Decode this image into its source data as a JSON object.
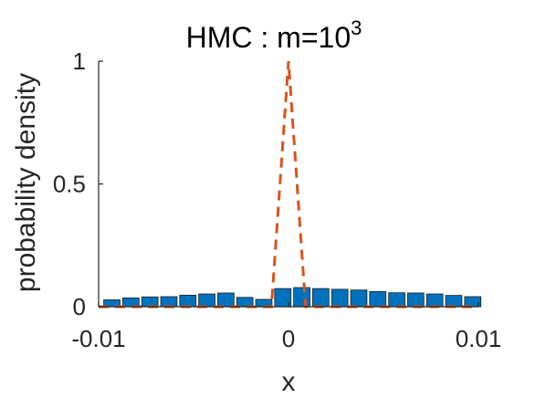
{
  "chart_data": {
    "type": "bar",
    "title_main": "HMC : m=10",
    "title_exponent": "3",
    "xlabel": "x",
    "ylabel": "probability density",
    "xlim": [
      -0.01,
      0.01
    ],
    "ylim": [
      0,
      1
    ],
    "xticks": [
      -0.01,
      0,
      0.01
    ],
    "xtick_labels": [
      "-0.01",
      "0",
      "0.01"
    ],
    "yticks": [
      0,
      0.5,
      1
    ],
    "ytick_labels": [
      "0",
      "0.5",
      "1"
    ],
    "grid": false,
    "series": [
      {
        "type": "bar",
        "color": "#0072BD",
        "bin_width": 0.001,
        "bin_centers": [
          -0.0093,
          -0.0083,
          -0.0073,
          -0.0063,
          -0.0053,
          -0.0043,
          -0.0033,
          -0.0023,
          -0.0013,
          -0.0003,
          0.0007,
          0.0017,
          0.0027,
          0.0037,
          0.0047,
          0.0057,
          0.0067,
          0.0077,
          0.0087,
          0.0097
        ],
        "values": [
          0.028,
          0.036,
          0.04,
          0.041,
          0.047,
          0.052,
          0.056,
          0.038,
          0.03,
          0.074,
          0.078,
          0.074,
          0.071,
          0.068,
          0.062,
          0.057,
          0.056,
          0.052,
          0.046,
          0.041
        ]
      },
      {
        "type": "line",
        "style": "dashed",
        "color": "#D95319",
        "x": [
          -0.01,
          -0.0009,
          0,
          0.0009,
          0.01
        ],
        "y": [
          0,
          0,
          1,
          0,
          0
        ]
      }
    ]
  }
}
